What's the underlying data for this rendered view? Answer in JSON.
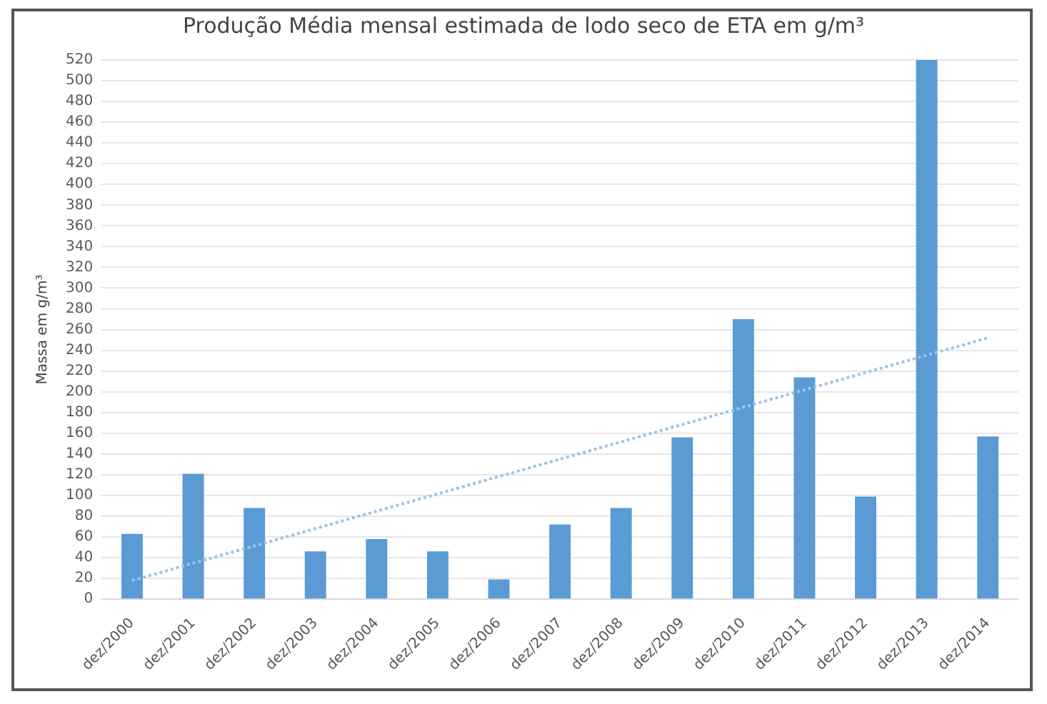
{
  "chart_data": {
    "type": "bar",
    "title": "Produção Média mensal estimada de lodo seco de ETA em g/m³",
    "ylabel": "Massa em g/m³",
    "categories": [
      "dez/2000",
      "dez/2001",
      "dez/2002",
      "dez/2003",
      "dez/2004",
      "dez/2005",
      "dez/2006",
      "dez/2007",
      "dez/2008",
      "dez/2009",
      "dez/2010",
      "dez/2011",
      "dez/2012",
      "dez/2013",
      "dez/2014"
    ],
    "series": [
      {
        "color": "#5b9bd5",
        "values": [
          63,
          121,
          88,
          46,
          58,
          46,
          19,
          72,
          88,
          156,
          270,
          214,
          99,
          520,
          157
        ]
      },
      {
        "type": "line",
        "color": "#9dc3e6",
        "x": [
          "dez/2000",
          "dez/2014"
        ],
        "values": [
          18,
          252
        ],
        "line_style": "dotted",
        "marker": "none"
      }
    ],
    "ylim": [
      0,
      520
    ],
    "yticks": [
      0,
      20,
      40,
      60,
      80,
      100,
      120,
      140,
      160,
      180,
      200,
      220,
      240,
      260,
      280,
      300,
      320,
      340,
      360,
      380,
      400,
      420,
      440,
      460,
      480,
      500,
      520
    ],
    "grid": "y",
    "legend": false
  }
}
